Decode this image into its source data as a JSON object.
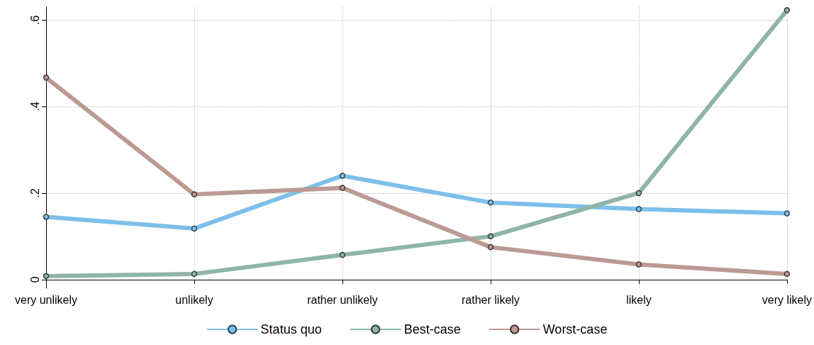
{
  "chart_data": {
    "type": "line",
    "categories": [
      "very unlikely",
      "unlikely",
      "rather unlikely",
      "rather likely",
      "likely",
      "very likely"
    ],
    "series": [
      {
        "name": "Status quo",
        "color": "#7dbfe9",
        "values": [
          0.145,
          0.118,
          0.24,
          0.178,
          0.163,
          0.153
        ]
      },
      {
        "name": "Best-case",
        "color": "#8fb4a8",
        "values": [
          0.008,
          0.013,
          0.057,
          0.1,
          0.2,
          0.623
        ]
      },
      {
        "name": "Worst-case",
        "color": "#bb9a94",
        "values": [
          0.467,
          0.197,
          0.212,
          0.075,
          0.035,
          0.013
        ]
      }
    ],
    "ylim": [
      -0.02,
      0.63
    ],
    "yticks": [
      {
        "value": 0,
        "label": "0"
      },
      {
        "value": 0.2,
        "label": ".2"
      },
      {
        "value": 0.4,
        "label": ".4"
      },
      {
        "value": 0.6,
        "label": ".6"
      }
    ],
    "grid": true,
    "legend": "bottom",
    "marker": "circle",
    "line_style": "solid"
  }
}
